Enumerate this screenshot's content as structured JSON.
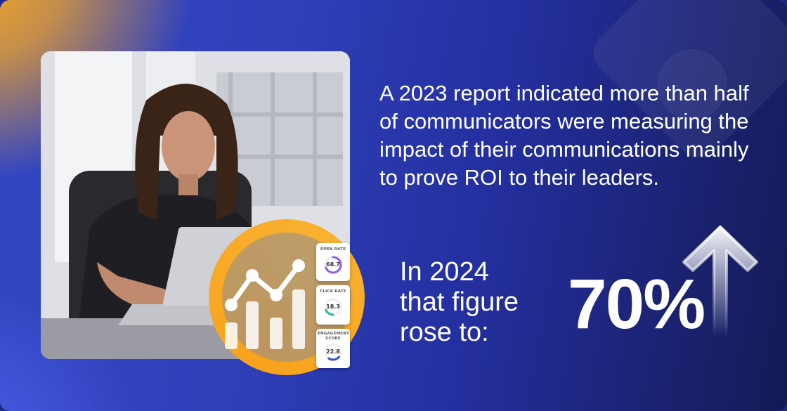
{
  "headline": "A 2023 report indicated more than half of communicators were measuring the impact of their communications mainly to prove ROI to their leaders.",
  "subline": {
    "line1": "In 2024",
    "line2": "that figure",
    "line3": "rose to:"
  },
  "big_stat": "70%",
  "metrics": [
    {
      "label": "OPEN RATE",
      "value": "68.7",
      "color": "#8b5cf6"
    },
    {
      "label": "CLICK RATE",
      "value": "18.3",
      "color": "#2bb5a0"
    },
    {
      "label": "ENGAGEMENT SCORE",
      "value": "22.8",
      "color": "#3b4fd8"
    }
  ],
  "icons": {
    "trend": "line-chart-icon",
    "arrow": "up-arrow-icon"
  },
  "colors": {
    "accent_orange": "#f7a21b",
    "background_blue": "#2f3fb8",
    "text": "#ffffff"
  }
}
